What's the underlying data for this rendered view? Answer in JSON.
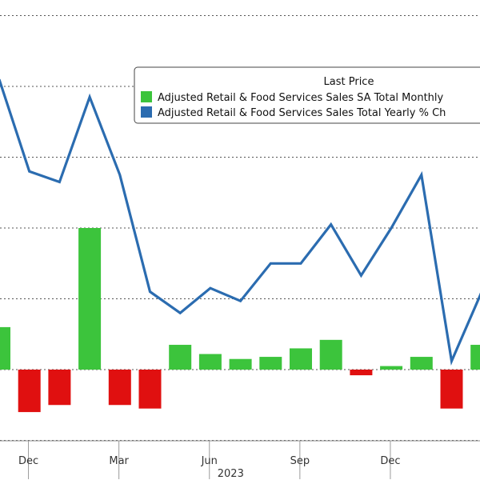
{
  "chart_data": {
    "type": "bar+line",
    "title": "",
    "legend": {
      "title": "Last Price",
      "placement": "top-right",
      "entries": [
        {
          "name": "Adjusted Retail & Food Services Sales SA Total Monthly",
          "color": "#3cc43c"
        },
        {
          "name": "Adjusted Retail & Food Services Sales Total Yearly % Ch",
          "color": "#2b6cb0"
        }
      ]
    },
    "x_tick_labels": [
      {
        "label": "Dec",
        "index": 1
      },
      {
        "label": "Mar",
        "index": 4
      },
      {
        "label": "Jun",
        "index": 7
      },
      {
        "label": "Sep",
        "index": 10
      },
      {
        "label": "Dec",
        "index": 13
      }
    ],
    "x_group_label": {
      "label": "2023",
      "from_index": 5,
      "to_index": 13
    },
    "gridlines": "horizontal-dotted",
    "ylim": [
      -1.0,
      5.2
    ],
    "yticks": [
      -1,
      0,
      1,
      2,
      3,
      4,
      5
    ],
    "series": [
      {
        "name": "Adjusted Retail & Food Services Sales SA Total Monthly",
        "kind": "bar",
        "positive_color": "#3cc43c",
        "negative_color": "#e01010",
        "values": [
          0.6,
          -0.6,
          -0.5,
          2.0,
          -0.5,
          -0.55,
          0.35,
          0.22,
          0.15,
          0.18,
          0.3,
          0.42,
          -0.08,
          0.05,
          0.18,
          -0.55,
          0.35
        ]
      },
      {
        "name": "Adjusted Retail & Food Services Sales Total Yearly % Ch",
        "kind": "line",
        "color": "#2b6cb0",
        "values": [
          4.1,
          2.8,
          2.65,
          3.85,
          2.75,
          1.1,
          0.8,
          1.15,
          0.97,
          1.5,
          1.5,
          2.05,
          1.33,
          2.0,
          2.75,
          0.12,
          1.1
        ]
      }
    ]
  }
}
